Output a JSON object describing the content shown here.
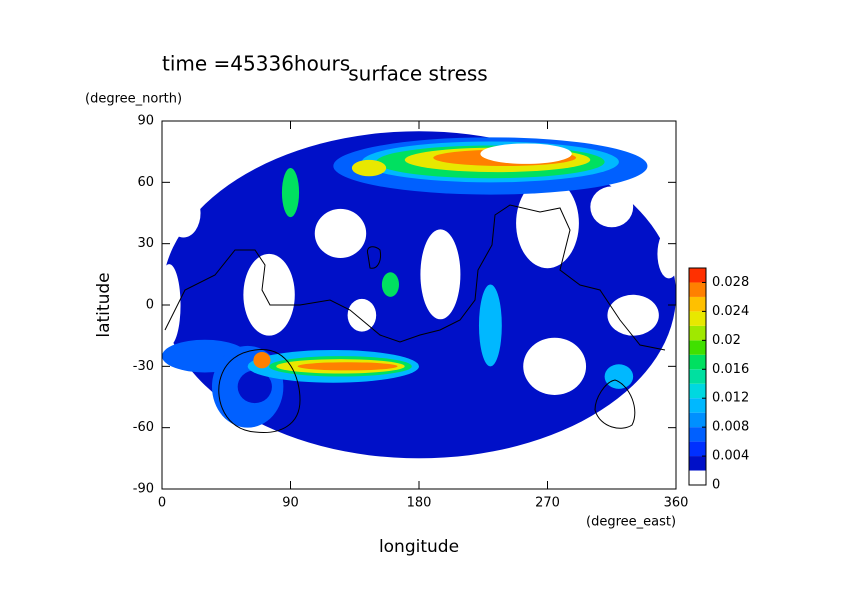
{
  "chart_data": {
    "type": "contour",
    "title": "surface stress",
    "subtitle": "time =45336hours",
    "x_label": "longitude",
    "x_units": "(degree_east)",
    "y_label": "latitude",
    "y_units": "(degree_north)",
    "xlim": [
      0,
      360
    ],
    "xticks": [
      0,
      90,
      180,
      270,
      360
    ],
    "ylim": [
      -90,
      90
    ],
    "yticks": [
      -90,
      -60,
      -30,
      0,
      30,
      60,
      90
    ],
    "clevels": [
      0,
      0.002,
      0.004,
      0.006,
      0.008,
      0.01,
      0.012,
      0.014,
      0.016,
      0.018,
      0.02,
      0.022,
      0.024,
      0.026,
      0.028,
      0.03
    ],
    "colors": [
      "#ffffff",
      "#0010c8",
      "#0030ff",
      "#0060ff",
      "#0090ff",
      "#00b8ff",
      "#00d8e0",
      "#00e0a0",
      "#00e060",
      "#40e000",
      "#a0e800",
      "#e8e800",
      "#ffc000",
      "#ff8000",
      "#ff3000"
    ],
    "colorbar_ticks": [
      0,
      0.004,
      0.008,
      0.012,
      0.016,
      0.02,
      0.024,
      0.028
    ]
  }
}
